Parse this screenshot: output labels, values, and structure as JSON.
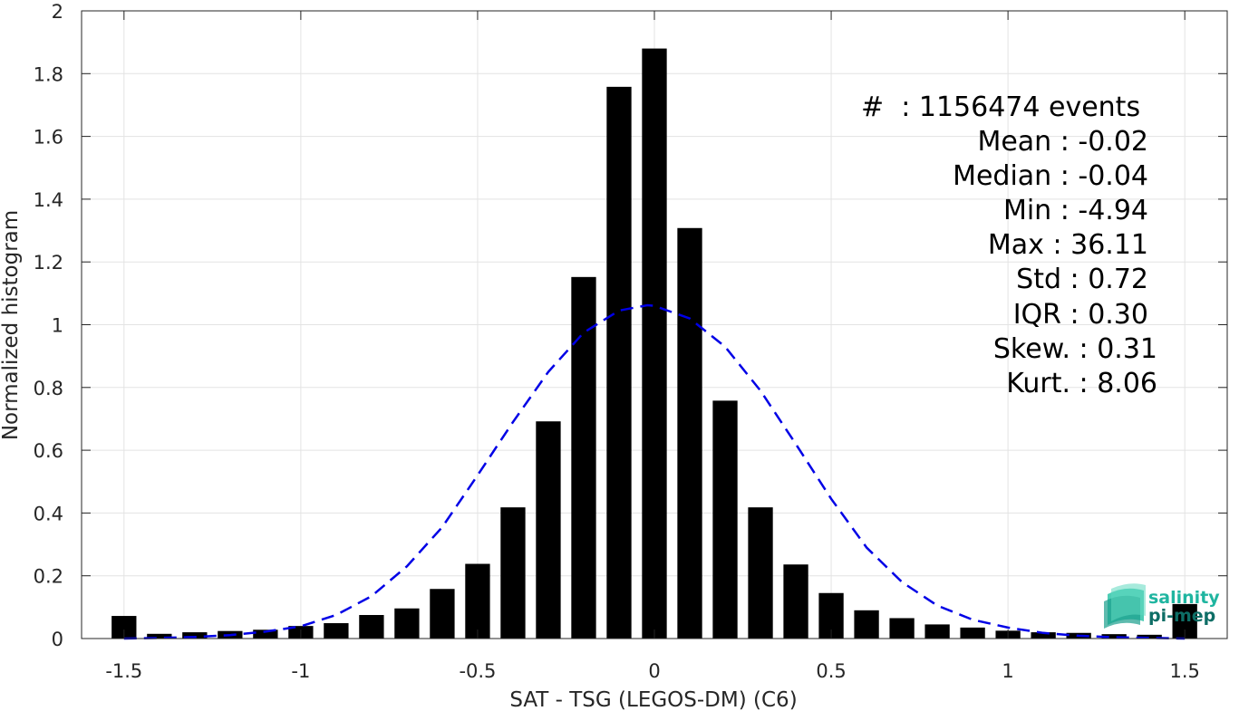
{
  "chart_data": {
    "type": "bar",
    "xlabel": "SAT - TSG (LEGOS-DM) (C6)",
    "ylabel": "Normalized histogram",
    "xlim": [
      -1.62,
      1.62
    ],
    "ylim": [
      0,
      2
    ],
    "grid": true,
    "xticks": [
      -1.5,
      -1,
      -0.5,
      0,
      0.5,
      1,
      1.5
    ],
    "xtick_labels": [
      "-1.5",
      "-1",
      "-0.5",
      "0",
      "0.5",
      "1",
      "1.5"
    ],
    "yticks": [
      0,
      0.2,
      0.4,
      0.6,
      0.8,
      1,
      1.2,
      1.4,
      1.6,
      1.8,
      2
    ],
    "ytick_labels": [
      "0",
      "0.2",
      "0.4",
      "0.6",
      "0.8",
      "1",
      "1.2",
      "1.4",
      "1.6",
      "1.8",
      "2"
    ],
    "bar_width": 0.07,
    "bars_x": [
      -1.5,
      -1.4,
      -1.3,
      -1.2,
      -1.1,
      -1.0,
      -0.9,
      -0.8,
      -0.7,
      -0.6,
      -0.5,
      -0.4,
      -0.3,
      -0.2,
      -0.1,
      0.0,
      0.1,
      0.2,
      0.3,
      0.4,
      0.5,
      0.6,
      0.7,
      0.8,
      0.9,
      1.0,
      1.1,
      1.2,
      1.3,
      1.4,
      1.5
    ],
    "bars_y": [
      0.072,
      0.015,
      0.02,
      0.024,
      0.028,
      0.04,
      0.049,
      0.075,
      0.096,
      0.158,
      0.238,
      0.418,
      0.692,
      1.152,
      1.758,
      1.88,
      1.308,
      0.758,
      0.418,
      0.236,
      0.145,
      0.09,
      0.065,
      0.045,
      0.035,
      0.025,
      0.02,
      0.018,
      0.014,
      0.012,
      0.11
    ],
    "series": [
      {
        "type": "line",
        "style": "dashed",
        "color": "#0000e6",
        "x": [
          -1.5,
          -1.4,
          -1.3,
          -1.2,
          -1.1,
          -1.0,
          -0.9,
          -0.8,
          -0.7,
          -0.6,
          -0.5,
          -0.4,
          -0.3,
          -0.2,
          -0.1,
          -0.02,
          0.0,
          0.1,
          0.2,
          0.3,
          0.4,
          0.5,
          0.6,
          0.7,
          0.8,
          0.9,
          1.0,
          1.1,
          1.2,
          1.3,
          1.4,
          1.5
        ],
        "y": [
          0.0,
          0.002,
          0.005,
          0.011,
          0.022,
          0.039,
          0.075,
          0.135,
          0.23,
          0.355,
          0.52,
          0.69,
          0.85,
          0.975,
          1.045,
          1.062,
          1.06,
          1.02,
          0.93,
          0.79,
          0.62,
          0.445,
          0.29,
          0.18,
          0.105,
          0.06,
          0.035,
          0.018,
          0.009,
          0.004,
          0.002,
          0.0
        ]
      }
    ],
    "bar_color": "#000000"
  },
  "stats": [
    {
      "label": "#  : 1156474 events"
    },
    {
      "label": "Mean : -0.02"
    },
    {
      "label": "Median : -0.04"
    },
    {
      "label": "Min : -4.94"
    },
    {
      "label": "Max : 36.11"
    },
    {
      "label": "Std : 0.72"
    },
    {
      "label": "IQR : 0.30"
    },
    {
      "label": "Skew. : 0.31"
    },
    {
      "label": "Kurt. : 8.06"
    }
  ],
  "logo": {
    "line1": "salinity",
    "line2": "pi-mep",
    "color1": "#1fb5a0",
    "color2": "#0e6e66"
  }
}
